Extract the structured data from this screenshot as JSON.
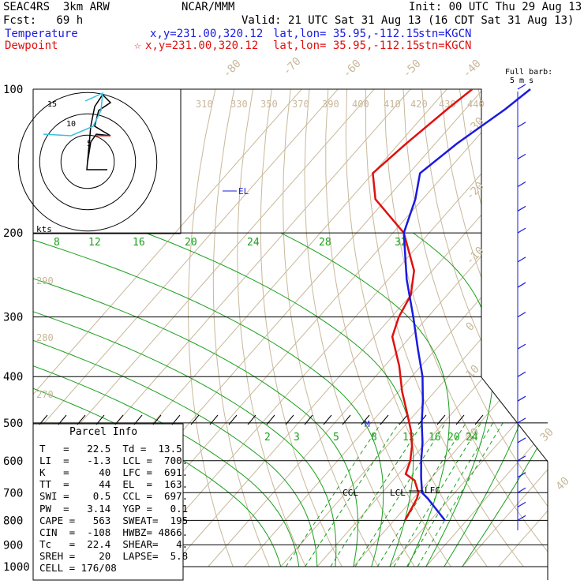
{
  "header": {
    "model": "SEAC4RS  3km ARW",
    "org": "NCAR/MMM",
    "init": "Init: 00 UTC Thu 29 Aug 13",
    "fcst": "Fcst:   69 h",
    "valid": "Valid: 21 UTC Sat 31 Aug 13 (16 CDT Sat 31 Aug 13)",
    "temp_label": "Temperature",
    "temp_xy": "x,y=231.00,320.12",
    "temp_latlon": "lat,lon= 35.95,-112.15",
    "temp_stn": "stn=KGCN",
    "dew_label": "Dewpoint",
    "dew_xy": "x,y=231.00,320.12",
    "dew_latlon": "lat,lon= 35.95,-112.15",
    "dew_stn": "stn=KGCN",
    "barb_note": "Full barb:\n 5 m s"
  },
  "colors": {
    "temperature": "#1a1ae0",
    "dewpoint": "#e01010",
    "isotherm": "#c8b89a",
    "mixing_ratio": "#1aa01a",
    "dry_adiabat": "#c8b89a"
  },
  "pressure_labels": [
    "100",
    "200",
    "300",
    "400",
    "500",
    "600",
    "700",
    "800",
    "900",
    "1000"
  ],
  "isotherm_labels": [
    "-80",
    "-70",
    "-60",
    "-50",
    "-40",
    "-30",
    "-20",
    "-10",
    "0",
    "10",
    "20",
    "30",
    "40"
  ],
  "theta_labels": [
    "310",
    "330",
    "350",
    "370",
    "390",
    "400",
    "410",
    "420",
    "430",
    "440",
    "290",
    "280",
    "270"
  ],
  "mixing_top_labels": [
    "8",
    "12",
    "16",
    "20",
    "24",
    "28",
    "32"
  ],
  "mixing_low_labels": [
    "2",
    "3",
    "5",
    "8",
    "12",
    "16",
    "20",
    "24"
  ],
  "hodograph": {
    "kts_label": "kts",
    "ring_labels": [
      "15",
      "10",
      "5"
    ]
  },
  "levels": {
    "el": "EL",
    "lfc": "LFC",
    "lcl": "LCL",
    "ccl": "CCL",
    "m": "M"
  },
  "parcel_info": {
    "title": "Parcel Info",
    "rows": [
      "T   =   22.5  Td =  13.5",
      "LI  =   -1.3  LCL =  700.",
      "K   =     40  LFC =  691.",
      "TT  =     44  EL  =  163.",
      "SWI =    0.5  CCL =  697.",
      "PW  =   3.14  YGP =   0.1",
      "CAPE =   563  SWEAT=  195",
      "CIN  =  -108  HWBZ= 4866.",
      "Tc   =  22.4  SHEAR=   4.",
      "SREH =    20  LAPSE=  5.8",
      "CELL = 176/08"
    ]
  },
  "chart_data": {
    "type": "line",
    "title": "SEAC4RS  3km ARW",
    "xlabel": "",
    "ylabel": "",
    "y_axis": "pressure (hPa), log scale",
    "ylim": [
      1000,
      100
    ],
    "series": [
      {
        "name": "Temperature",
        "pressure": [
          800,
          720,
          700,
          650,
          600,
          550,
          500,
          450,
          400,
          350,
          300,
          250,
          200,
          170,
          150,
          130,
          110,
          100
        ],
        "values": [
          24,
          14,
          11,
          7,
          3,
          -1,
          -6,
          -11,
          -17,
          -25,
          -34,
          -45,
          -57,
          -62,
          -67,
          -64,
          -59,
          -57
        ]
      },
      {
        "name": "Dewpoint",
        "pressure": [
          800,
          720,
          700,
          660,
          640,
          600,
          560,
          520,
          480,
          430,
          380,
          330,
          300,
          270,
          240,
          200,
          170,
          150,
          130,
          110,
          100
        ],
        "values": [
          13,
          11,
          10,
          6,
          2,
          0,
          -3,
          -7,
          -12,
          -19,
          -26,
          -35,
          -38,
          -40,
          -45,
          -57,
          -73,
          -80,
          -78,
          -75,
          -73
        ]
      }
    ],
    "wind_barbs": {
      "pressures": [
        100,
        120,
        140,
        160,
        180,
        200,
        230,
        260,
        300,
        350,
        400,
        450,
        500,
        550,
        600,
        650,
        700,
        750,
        800
      ]
    },
    "grid": true,
    "parcel_info": "see parcel_info"
  }
}
